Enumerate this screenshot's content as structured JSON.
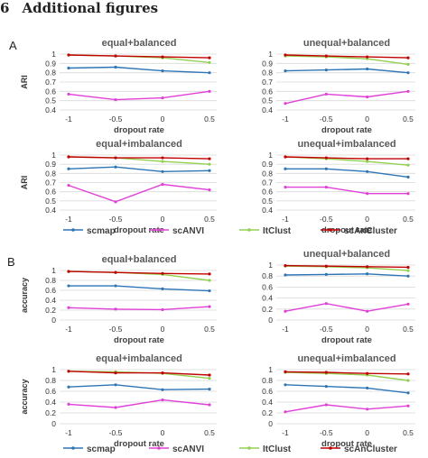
{
  "heading": {
    "number": "6",
    "title": "Additional figures"
  },
  "colors": {
    "scmap": "#2e75b6",
    "scANVI": "#e040d8",
    "ItClust": "#92d050",
    "scAnCluster": "#c00000"
  },
  "panels": [
    {
      "letter": "A",
      "legend": [
        "scmap",
        "scANVI",
        "ItClust",
        "scAnCluster"
      ],
      "charts": [
        {
          "title": "equal+balanced",
          "ylabel": "ARI",
          "xlabel": "dropout rate",
          "x": [
            -1,
            -0.5,
            0,
            0.5
          ],
          "xticks": [
            "-1",
            "-0.5",
            "0",
            "0.5"
          ],
          "ylim": [
            0.4,
            1
          ],
          "yticks": [
            "0.4",
            "0.5",
            "0.6",
            "0.7",
            "0.8",
            "0.9",
            "1"
          ],
          "series": [
            {
              "name": "scmap",
              "values": [
                0.85,
                0.86,
                0.82,
                0.8
              ]
            },
            {
              "name": "scANVI",
              "values": [
                0.57,
                0.51,
                0.53,
                0.6
              ]
            },
            {
              "name": "ItClust",
              "values": [
                0.99,
                0.98,
                0.96,
                0.91
              ]
            },
            {
              "name": "scAnCluster",
              "values": [
                0.99,
                0.98,
                0.97,
                0.96
              ]
            }
          ]
        },
        {
          "title": "unequal+balanced",
          "ylabel": "",
          "xlabel": "dropout rate",
          "x": [
            -1,
            -0.5,
            0,
            0.5
          ],
          "xticks": [
            "-1",
            "-0.5",
            "0",
            "0.5"
          ],
          "ylim": [
            0.4,
            1
          ],
          "yticks": [
            "0.4",
            "0.5",
            "0.6",
            "0.7",
            "0.8",
            "0.9",
            "1"
          ],
          "series": [
            {
              "name": "scmap",
              "values": [
                0.82,
                0.83,
                0.84,
                0.8
              ]
            },
            {
              "name": "scANVI",
              "values": [
                0.47,
                0.57,
                0.54,
                0.6
              ]
            },
            {
              "name": "ItClust",
              "values": [
                0.98,
                0.97,
                0.95,
                0.89
              ]
            },
            {
              "name": "scAnCluster",
              "values": [
                0.99,
                0.98,
                0.97,
                0.96
              ]
            }
          ]
        },
        {
          "title": "equal+imbalanced",
          "ylabel": "ARI",
          "xlabel": "dropout rate",
          "x": [
            -1,
            -0.5,
            0,
            0.5
          ],
          "xticks": [
            "-1",
            "-0.5",
            "0",
            "0.5"
          ],
          "ylim": [
            0.4,
            1
          ],
          "yticks": [
            "0.4",
            "0.5",
            "0.6",
            "0.7",
            "0.8",
            "0.9",
            "1"
          ],
          "series": [
            {
              "name": "scmap",
              "values": [
                0.85,
                0.87,
                0.82,
                0.83
              ]
            },
            {
              "name": "scANVI",
              "values": [
                0.67,
                0.49,
                0.68,
                0.62
              ]
            },
            {
              "name": "ItClust",
              "values": [
                0.98,
                0.97,
                0.93,
                0.9
              ]
            },
            {
              "name": "scAnCluster",
              "values": [
                0.98,
                0.97,
                0.97,
                0.96
              ]
            }
          ]
        },
        {
          "title": "unequal+imbalanced",
          "ylabel": "",
          "xlabel": "dropout rate",
          "x": [
            -1,
            -0.5,
            0,
            0.5
          ],
          "xticks": [
            "-1",
            "-0.5",
            "0",
            "0.5"
          ],
          "ylim": [
            0.4,
            1
          ],
          "yticks": [
            "0.4",
            "0.5",
            "0.6",
            "0.7",
            "0.8",
            "0.9",
            "1"
          ],
          "series": [
            {
              "name": "scmap",
              "values": [
                0.85,
                0.85,
                0.82,
                0.76
              ]
            },
            {
              "name": "scANVI",
              "values": [
                0.65,
                0.65,
                0.58,
                0.58
              ]
            },
            {
              "name": "ItClust",
              "values": [
                0.98,
                0.96,
                0.93,
                0.89
              ]
            },
            {
              "name": "scAnCluster",
              "values": [
                0.98,
                0.97,
                0.96,
                0.96
              ]
            }
          ]
        }
      ]
    },
    {
      "letter": "B",
      "legend": [
        "scmap",
        "scANVI",
        "ItClust",
        "scAnCluster"
      ],
      "charts": [
        {
          "title": "equal+balanced",
          "ylabel": "accuracy",
          "xlabel": "dropout rate",
          "x": [
            -1,
            -0.5,
            0,
            0.5
          ],
          "xticks": [
            "-1",
            "-0.5",
            "0",
            "0.5"
          ],
          "ylim": [
            0,
            1
          ],
          "yticks": [
            "0",
            "0.2",
            "0.4",
            "0.6",
            "0.8",
            "1"
          ],
          "series": [
            {
              "name": "scmap",
              "values": [
                0.69,
                0.69,
                0.63,
                0.59
              ]
            },
            {
              "name": "scANVI",
              "values": [
                0.25,
                0.22,
                0.21,
                0.27
              ]
            },
            {
              "name": "ItClust",
              "values": [
                0.98,
                0.96,
                0.92,
                0.8
              ]
            },
            {
              "name": "scAnCluster",
              "values": [
                0.98,
                0.96,
                0.94,
                0.93
              ]
            }
          ]
        },
        {
          "title": "unequal+balanced",
          "ylabel": "",
          "xlabel": "dropout rate",
          "x": [
            -1,
            -0.5,
            0,
            0.5
          ],
          "xticks": [
            "-1",
            "-0.5",
            "0",
            "0.5"
          ],
          "ylim": [
            0,
            1
          ],
          "yticks": [
            "0",
            "0.2",
            "0.4",
            "0.6",
            "0.8",
            "1"
          ],
          "series": [
            {
              "name": "scmap",
              "values": [
                0.82,
                0.83,
                0.84,
                0.8
              ]
            },
            {
              "name": "scANVI",
              "values": [
                0.16,
                0.3,
                0.16,
                0.29
              ]
            },
            {
              "name": "ItClust",
              "values": [
                0.98,
                0.97,
                0.95,
                0.9
              ]
            },
            {
              "name": "scAnCluster",
              "values": [
                0.99,
                0.98,
                0.97,
                0.96
              ]
            }
          ]
        },
        {
          "title": "equal+imbalanced",
          "ylabel": "accuracy",
          "xlabel": "dropout rate",
          "x": [
            -1,
            -0.5,
            0,
            0.5
          ],
          "xticks": [
            "-1",
            "-0.5",
            "0",
            "0.5"
          ],
          "ylim": [
            0,
            1
          ],
          "yticks": [
            "0",
            "0.2",
            "0.4",
            "0.6",
            "0.8",
            "1"
          ],
          "series": [
            {
              "name": "scmap",
              "values": [
                0.68,
                0.72,
                0.63,
                0.64
              ]
            },
            {
              "name": "scANVI",
              "values": [
                0.36,
                0.3,
                0.44,
                0.35
              ]
            },
            {
              "name": "ItClust",
              "values": [
                0.97,
                0.96,
                0.93,
                0.84
              ]
            },
            {
              "name": "scAnCluster",
              "values": [
                0.97,
                0.94,
                0.94,
                0.9
              ]
            }
          ]
        },
        {
          "title": "unequal+imbalanced",
          "ylabel": "",
          "xlabel": "dropout rate",
          "x": [
            -1,
            -0.5,
            0,
            0.5
          ],
          "xticks": [
            "-1",
            "-0.5",
            "0",
            "0.5"
          ],
          "ylim": [
            0,
            1
          ],
          "yticks": [
            "0",
            "0.2",
            "0.4",
            "0.6",
            "0.8",
            "1"
          ],
          "series": [
            {
              "name": "scmap",
              "values": [
                0.72,
                0.69,
                0.66,
                0.57
              ]
            },
            {
              "name": "scANVI",
              "values": [
                0.22,
                0.35,
                0.27,
                0.33
              ]
            },
            {
              "name": "ItClust",
              "values": [
                0.95,
                0.93,
                0.9,
                0.8
              ]
            },
            {
              "name": "scAnCluster",
              "values": [
                0.96,
                0.95,
                0.93,
                0.92
              ]
            }
          ]
        }
      ]
    }
  ],
  "chart_data": [
    {
      "type": "line",
      "title": "equal+balanced",
      "xlabel": "dropout rate",
      "ylabel": "ARI",
      "x": [
        -1,
        -0.5,
        0,
        0.5
      ],
      "ylim": [
        0.4,
        1
      ],
      "series": [
        {
          "name": "scmap",
          "values": [
            0.85,
            0.86,
            0.82,
            0.8
          ]
        },
        {
          "name": "scANVI",
          "values": [
            0.57,
            0.51,
            0.53,
            0.6
          ]
        },
        {
          "name": "ItClust",
          "values": [
            0.99,
            0.98,
            0.96,
            0.91
          ]
        },
        {
          "name": "scAnCluster",
          "values": [
            0.99,
            0.98,
            0.97,
            0.96
          ]
        }
      ]
    },
    {
      "type": "line",
      "title": "unequal+balanced",
      "xlabel": "dropout rate",
      "ylabel": "",
      "x": [
        -1,
        -0.5,
        0,
        0.5
      ],
      "ylim": [
        0.4,
        1
      ],
      "series": [
        {
          "name": "scmap",
          "values": [
            0.82,
            0.83,
            0.84,
            0.8
          ]
        },
        {
          "name": "scANVI",
          "values": [
            0.47,
            0.57,
            0.54,
            0.6
          ]
        },
        {
          "name": "ItClust",
          "values": [
            0.98,
            0.97,
            0.95,
            0.89
          ]
        },
        {
          "name": "scAnCluster",
          "values": [
            0.99,
            0.98,
            0.97,
            0.96
          ]
        }
      ]
    },
    {
      "type": "line",
      "title": "equal+imbalanced",
      "xlabel": "dropout rate",
      "ylabel": "ARI",
      "x": [
        -1,
        -0.5,
        0,
        0.5
      ],
      "ylim": [
        0.4,
        1
      ],
      "series": [
        {
          "name": "scmap",
          "values": [
            0.85,
            0.87,
            0.82,
            0.83
          ]
        },
        {
          "name": "scANVI",
          "values": [
            0.67,
            0.49,
            0.68,
            0.62
          ]
        },
        {
          "name": "ItClust",
          "values": [
            0.98,
            0.97,
            0.93,
            0.9
          ]
        },
        {
          "name": "scAnCluster",
          "values": [
            0.98,
            0.97,
            0.97,
            0.96
          ]
        }
      ]
    },
    {
      "type": "line",
      "title": "unequal+imbalanced",
      "xlabel": "dropout rate",
      "ylabel": "",
      "x": [
        -1,
        -0.5,
        0,
        0.5
      ],
      "ylim": [
        0.4,
        1
      ],
      "series": [
        {
          "name": "scmap",
          "values": [
            0.85,
            0.85,
            0.82,
            0.76
          ]
        },
        {
          "name": "scANVI",
          "values": [
            0.65,
            0.65,
            0.58,
            0.58
          ]
        },
        {
          "name": "ItClust",
          "values": [
            0.98,
            0.96,
            0.93,
            0.89
          ]
        },
        {
          "name": "scAnCluster",
          "values": [
            0.98,
            0.97,
            0.96,
            0.96
          ]
        }
      ]
    },
    {
      "type": "line",
      "title": "equal+balanced",
      "xlabel": "dropout rate",
      "ylabel": "accuracy",
      "x": [
        -1,
        -0.5,
        0,
        0.5
      ],
      "ylim": [
        0,
        1
      ],
      "series": [
        {
          "name": "scmap",
          "values": [
            0.69,
            0.69,
            0.63,
            0.59
          ]
        },
        {
          "name": "scANVI",
          "values": [
            0.25,
            0.22,
            0.21,
            0.27
          ]
        },
        {
          "name": "ItClust",
          "values": [
            0.98,
            0.96,
            0.92,
            0.8
          ]
        },
        {
          "name": "scAnCluster",
          "values": [
            0.98,
            0.96,
            0.94,
            0.93
          ]
        }
      ]
    },
    {
      "type": "line",
      "title": "unequal+balanced",
      "xlabel": "dropout rate",
      "ylabel": "",
      "x": [
        -1,
        -0.5,
        0,
        0.5
      ],
      "ylim": [
        0,
        1
      ],
      "series": [
        {
          "name": "scmap",
          "values": [
            0.82,
            0.83,
            0.84,
            0.8
          ]
        },
        {
          "name": "scANVI",
          "values": [
            0.16,
            0.3,
            0.16,
            0.29
          ]
        },
        {
          "name": "ItClust",
          "values": [
            0.98,
            0.97,
            0.95,
            0.9
          ]
        },
        {
          "name": "scAnCluster",
          "values": [
            0.99,
            0.98,
            0.97,
            0.96
          ]
        }
      ]
    },
    {
      "type": "line",
      "title": "equal+imbalanced",
      "xlabel": "dropout rate",
      "ylabel": "accuracy",
      "x": [
        -1,
        -0.5,
        0,
        0.5
      ],
      "ylim": [
        0,
        1
      ],
      "series": [
        {
          "name": "scmap",
          "values": [
            0.68,
            0.72,
            0.63,
            0.64
          ]
        },
        {
          "name": "scANVI",
          "values": [
            0.36,
            0.3,
            0.44,
            0.35
          ]
        },
        {
          "name": "ItClust",
          "values": [
            0.97,
            0.96,
            0.93,
            0.84
          ]
        },
        {
          "name": "scAnCluster",
          "values": [
            0.97,
            0.94,
            0.94,
            0.9
          ]
        }
      ]
    },
    {
      "type": "line",
      "title": "unequal+imbalanced",
      "xlabel": "dropout rate",
      "ylabel": "",
      "x": [
        -1,
        -0.5,
        0,
        0.5
      ],
      "ylim": [
        0,
        1
      ],
      "series": [
        {
          "name": "scmap",
          "values": [
            0.72,
            0.69,
            0.66,
            0.57
          ]
        },
        {
          "name": "scANVI",
          "values": [
            0.22,
            0.35,
            0.27,
            0.33
          ]
        },
        {
          "name": "ItClust",
          "values": [
            0.95,
            0.93,
            0.9,
            0.8
          ]
        },
        {
          "name": "scAnCluster",
          "values": [
            0.96,
            0.95,
            0.93,
            0.92
          ]
        }
      ]
    }
  ]
}
